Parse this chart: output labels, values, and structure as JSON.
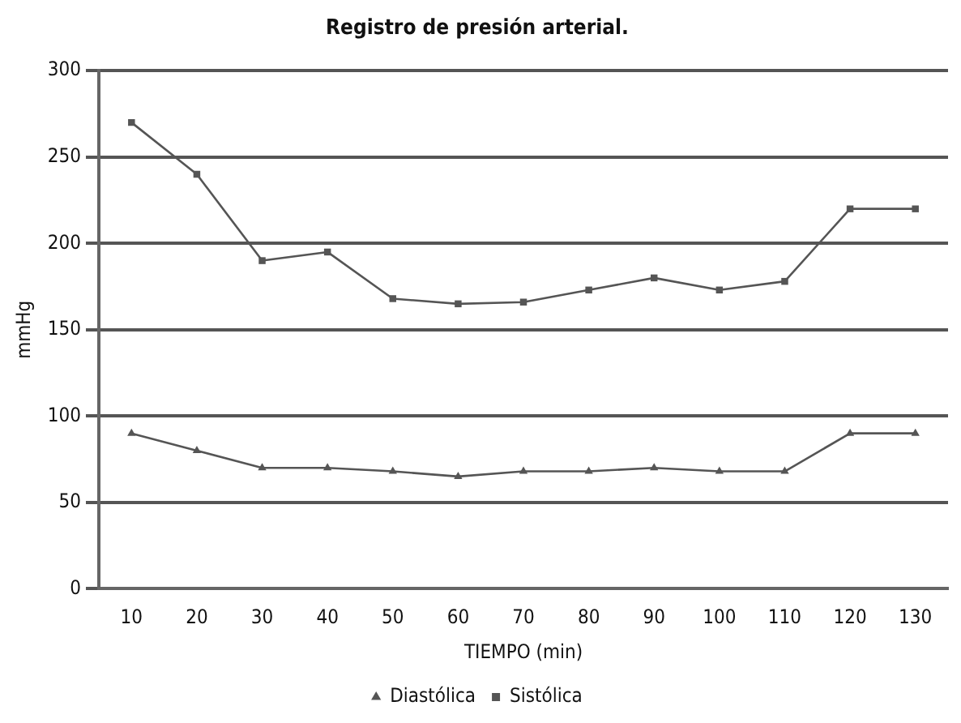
{
  "chart_data": {
    "type": "line",
    "title": "Registro de presión arterial.",
    "xlabel": "TIEMPO (min)",
    "ylabel": "mmHg",
    "categories": [
      "10",
      "20",
      "30",
      "40",
      "50",
      "60",
      "70",
      "80",
      "90",
      "100",
      "110",
      "120",
      "130"
    ],
    "series": [
      {
        "name": "Diastólica",
        "color": "#555555",
        "marker": "triangle",
        "values": [
          90,
          80,
          70,
          70,
          68,
          65,
          68,
          68,
          70,
          68,
          68,
          90,
          90
        ]
      },
      {
        "name": "Sistólica",
        "color": "#555555",
        "marker": "square",
        "values": [
          270,
          240,
          190,
          195,
          168,
          165,
          166,
          173,
          180,
          173,
          178,
          220,
          220
        ]
      }
    ],
    "ylim": [
      0,
      300
    ],
    "yticks": [
      0,
      50,
      100,
      150,
      200,
      250,
      300
    ],
    "grid": "y",
    "legend": "bottom",
    "line_style": "solid"
  }
}
